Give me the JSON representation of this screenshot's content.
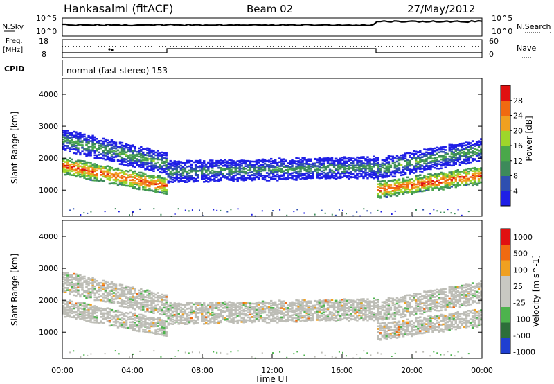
{
  "header": {
    "station": "Hankasalmi (fitACF)",
    "beam": "Beam 02",
    "date": "27/May/2012"
  },
  "noise_panel": {
    "left_label": "N.Sky",
    "right_label": "N.Search",
    "left_ticks": [
      "10^5",
      "10^0"
    ],
    "right_ticks": [
      "10^5",
      "10^0"
    ]
  },
  "freq_panel": {
    "left_label_1": "Freq.",
    "left_label_2": "[MHz]",
    "right_label": "Nave",
    "left_ticks": [
      "18",
      "8"
    ],
    "right_ticks": [
      "60",
      "0"
    ]
  },
  "cpid": {
    "label": "CPID",
    "text": "normal (fast stereo) 153"
  },
  "colors": {
    "power_scale": [
      "#1f1fe6",
      "#2e4fb0",
      "#3d8a5a",
      "#4aa84a",
      "#9ed62a",
      "#f0a020",
      "#f06a10",
      "#e01010"
    ],
    "velocity_scale": [
      "#1f3fd0",
      "#2d6e3a",
      "#4db34d",
      "#c8c8c2",
      "#c8c8c2",
      "#f0a020",
      "#f06a10",
      "#e01010"
    ],
    "ground_scatter": "#bdbdb6"
  },
  "chart_data": [
    {
      "type": "heatmap",
      "title": "Power",
      "ylabel": "Slant Range [km]",
      "xlabel": "Time UT",
      "xlim": [
        "00:00",
        "24:00"
      ],
      "ylim": [
        180,
        4500
      ],
      "y_ticks": [
        "1000",
        "2000",
        "3000",
        "4000"
      ],
      "colorbar": {
        "label": "Power [dB]",
        "ticks": [
          "4",
          "8",
          "12",
          "16",
          "20",
          "24",
          "28"
        ],
        "range": [
          0,
          32
        ]
      },
      "bands": [
        {
          "name": "strong lower band",
          "t_start": 0,
          "t_end": 6,
          "range_start_km": 1800,
          "range_end_km": 1150,
          "level_db": 28
        },
        {
          "name": "upper band",
          "t_start": 0,
          "t_end": 6,
          "range_start_km": 2600,
          "range_end_km": 1850,
          "level_db": 14
        },
        {
          "name": "midday band",
          "t_start": 6,
          "t_end": 18,
          "range_start_km": 1600,
          "range_end_km": 1750,
          "level_db": 12
        },
        {
          "name": "strong evening band",
          "t_start": 18,
          "t_end": 24,
          "range_start_km": 1050,
          "range_end_km": 1500,
          "level_db": 28
        },
        {
          "name": "evening upper band",
          "t_start": 18,
          "t_end": 24,
          "range_start_km": 1700,
          "range_end_km": 2300,
          "level_db": 14
        }
      ]
    },
    {
      "type": "heatmap",
      "title": "Velocity",
      "ylabel": "Slant Range [km]",
      "xlabel": "Time UT",
      "xlim": [
        "00:00",
        "24:00"
      ],
      "ylim": [
        180,
        4500
      ],
      "y_ticks": [
        "1000",
        "2000",
        "3000",
        "4000"
      ],
      "x_ticks": [
        "00:00",
        "04:00",
        "08:00",
        "12:00",
        "16:00",
        "20:00",
        "00:00"
      ],
      "colorbar": {
        "label": "Velocity [m s^-1]",
        "ticks": [
          "1000",
          "500",
          "100",
          "25",
          "-25",
          "-100",
          "-500",
          "-1000"
        ]
      }
    }
  ]
}
